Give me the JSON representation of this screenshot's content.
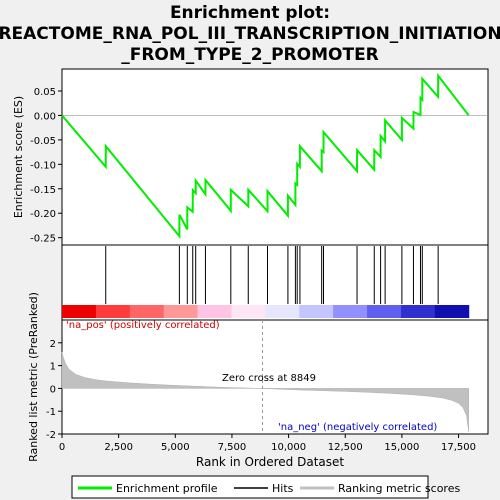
{
  "chart_data": {
    "type": "line",
    "title_lines": [
      "Enrichment plot:",
      "REACTOME_RNA_POL_III_TRANSCRIPTION_INITIATION",
      "_FROM_TYPE_2_PROMOTER"
    ],
    "es_panel": {
      "ylabel": "Enrichment score (ES)",
      "ylim": [
        -0.265,
        0.095
      ],
      "yticks": [
        "0.05",
        "0.00",
        "-0.05",
        "-0.10",
        "-0.15",
        "-0.20",
        "-0.25"
      ],
      "ytick_values": [
        0.05,
        0.0,
        -0.05,
        -0.1,
        -0.15,
        -0.2,
        -0.25
      ],
      "line_color": "#00ee00",
      "profile_x": [
        0,
        1930,
        1931,
        5180,
        5181,
        5530,
        5531,
        5770,
        5771,
        5900,
        5901,
        6330,
        6331,
        7450,
        7451,
        8220,
        8221,
        9070,
        9071,
        9970,
        9971,
        10300,
        10301,
        10380,
        10381,
        10500,
        10501,
        11460,
        11461,
        11540,
        11541,
        13020,
        13021,
        13780,
        13781,
        14060,
        14061,
        14260,
        14261,
        15000,
        15001,
        15510,
        15511,
        15820,
        15821,
        15900,
        15901,
        16600,
        16601,
        17950
      ],
      "profile_y": [
        0.0,
        -0.105,
        -0.063,
        -0.247,
        -0.203,
        -0.233,
        -0.188,
        -0.197,
        -0.153,
        -0.159,
        -0.133,
        -0.161,
        -0.132,
        -0.195,
        -0.152,
        -0.186,
        -0.152,
        -0.196,
        -0.155,
        -0.205,
        -0.164,
        -0.183,
        -0.139,
        -0.142,
        -0.099,
        -0.105,
        -0.063,
        -0.114,
        -0.072,
        -0.075,
        -0.034,
        -0.114,
        -0.071,
        -0.111,
        -0.071,
        -0.085,
        -0.042,
        -0.053,
        -0.01,
        -0.05,
        -0.005,
        -0.027,
        0.007,
        0.001,
        0.036,
        0.032,
        0.075,
        0.038,
        0.081,
        0.0
      ]
    },
    "hits_x": [
      1930,
      5180,
      5530,
      5770,
      5900,
      6330,
      7450,
      8220,
      9070,
      9970,
      10300,
      10380,
      10500,
      11460,
      11540,
      13020,
      13780,
      14060,
      14260,
      15000,
      15510,
      15820,
      15900,
      16600
    ],
    "bar_colors": [
      "#ee0000",
      "#ff3b3b",
      "#ff6666",
      "#ff9999",
      "#ffc4e4",
      "#ffe6f4",
      "#e6e6ff",
      "#c4c4ff",
      "#9090ff",
      "#6060f0",
      "#3030d0",
      "#1010b0"
    ],
    "rank_panel": {
      "ylabel": "Ranked list metric (PreRanked)",
      "ylim": [
        -2,
        3
      ],
      "yticks": [
        "2",
        "1",
        "0",
        "-1",
        "-2"
      ],
      "ytick_values": [
        2,
        1,
        0,
        -1,
        -2
      ],
      "metric_x": [
        0,
        50,
        150,
        300,
        600,
        1000,
        1500,
        2000,
        3000,
        4000,
        5000,
        6000,
        7000,
        8000,
        8849,
        9500,
        10500,
        11500,
        12500,
        13500,
        14500,
        15500,
        16200,
        16800,
        17200,
        17500,
        17700,
        17850,
        17950
      ],
      "metric_y": [
        1.6,
        1.4,
        1.1,
        0.85,
        0.62,
        0.48,
        0.38,
        0.32,
        0.24,
        0.18,
        0.13,
        0.09,
        0.05,
        0.02,
        0.0,
        -0.03,
        -0.07,
        -0.1,
        -0.13,
        -0.17,
        -0.22,
        -0.28,
        -0.34,
        -0.42,
        -0.52,
        -0.65,
        -0.85,
        -1.2,
        -1.9
      ],
      "fill_color": "#c0c0c0",
      "zero_cross_label": "Zero cross at 8849",
      "zero_cross_x": 8849,
      "pos_label": "'na_pos' (positively correlated)",
      "neg_label": "'na_neg' (negatively correlated)"
    },
    "xaxis": {
      "label": "Rank in Ordered Dataset",
      "xlim": [
        0,
        18800
      ],
      "ticks": [
        "0",
        "2,500",
        "5,000",
        "7,500",
        "10,000",
        "12,500",
        "15,000",
        "17,500"
      ],
      "tick_values": [
        0,
        2500,
        5000,
        7500,
        10000,
        12500,
        15000,
        17500
      ]
    },
    "legend": {
      "placement": "bottom",
      "items": [
        {
          "label": "Enrichment profile",
          "color": "#00ee00"
        },
        {
          "label": "Hits",
          "color": "#000000"
        },
        {
          "label": "Ranking metric scores",
          "color": "#c0c0c0"
        }
      ]
    }
  }
}
